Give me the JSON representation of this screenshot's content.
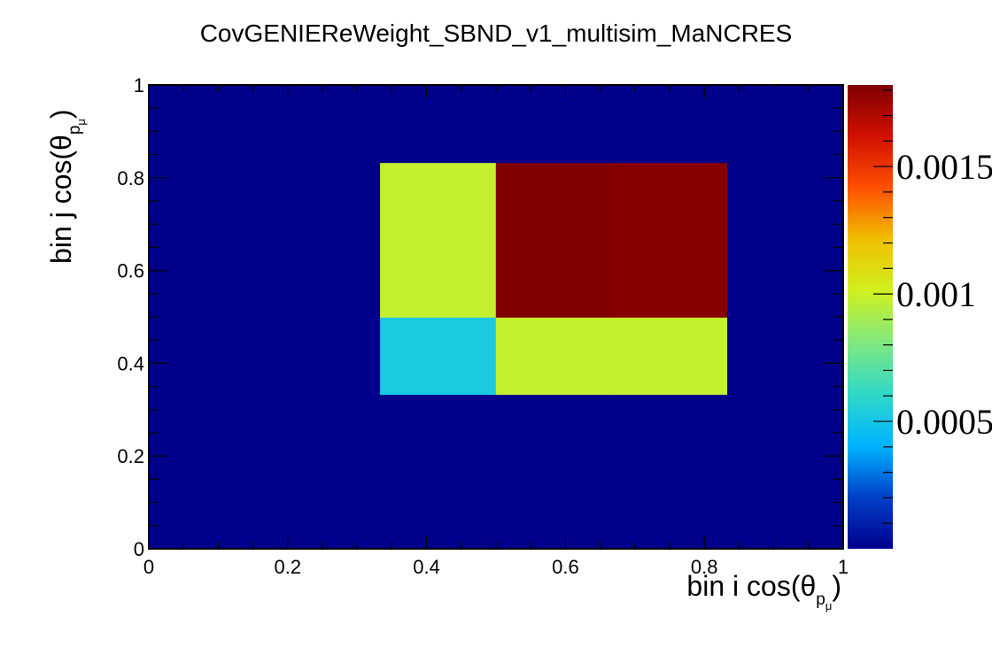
{
  "chart_data": {
    "type": "heatmap",
    "title": "CovGENIEReWeight_SBND_v1_multisim_MaNCRES",
    "xlabel": {
      "main": "bin i cos(θ",
      "sub": "p",
      "subsub": "μ",
      "close": ")"
    },
    "ylabel": {
      "main": "bin j cos(θ",
      "sub": "p",
      "subsub": "μ",
      "close": ")"
    },
    "xlim": [
      0,
      1
    ],
    "ylim": [
      0,
      1
    ],
    "x_edges": [
      0,
      0.1667,
      0.3333,
      0.5,
      0.6667,
      0.8333,
      1
    ],
    "y_edges": [
      0,
      0.1667,
      0.3333,
      0.5,
      0.6667,
      0.8333,
      1
    ],
    "x_ticks": [
      {
        "value": 0,
        "label": "0"
      },
      {
        "value": 0.2,
        "label": "0.2"
      },
      {
        "value": 0.4,
        "label": "0.4"
      },
      {
        "value": 0.6,
        "label": "0.6"
      },
      {
        "value": 0.8,
        "label": "0.8"
      },
      {
        "value": 1,
        "label": "1"
      }
    ],
    "y_ticks": [
      {
        "value": 0,
        "label": "0"
      },
      {
        "value": 0.2,
        "label": "0.2"
      },
      {
        "value": 0.4,
        "label": "0.4"
      },
      {
        "value": 0.6,
        "label": "0.6"
      },
      {
        "value": 0.8,
        "label": "0.8"
      },
      {
        "value": 1,
        "label": "1"
      }
    ],
    "z_rows_bottom_to_top": [
      [
        0,
        0,
        0,
        0,
        0,
        0
      ],
      [
        0,
        0,
        0,
        0,
        0,
        0
      ],
      [
        0,
        0,
        0.00052,
        0.00098,
        0.00098,
        0
      ],
      [
        0,
        0,
        0.00098,
        0.00182,
        0.00181,
        0
      ],
      [
        0,
        0,
        0.00098,
        0.00182,
        0.00181,
        0
      ],
      [
        0,
        0,
        0,
        0,
        0,
        0
      ]
    ],
    "zlim": [
      0,
      0.00182
    ],
    "colorbar_ticks": [
      {
        "value": 0.0005,
        "label": "0.0005"
      },
      {
        "value": 0.001,
        "label": "0.001"
      },
      {
        "value": 0.0015,
        "label": "0.0015"
      }
    ],
    "colormap": [
      "#00008b",
      "#0040c8",
      "#00b4ff",
      "#30d8c8",
      "#80e880",
      "#d0f020",
      "#f0c000",
      "#ff5000",
      "#d01000",
      "#800000"
    ],
    "grid": false,
    "legend": "none"
  }
}
